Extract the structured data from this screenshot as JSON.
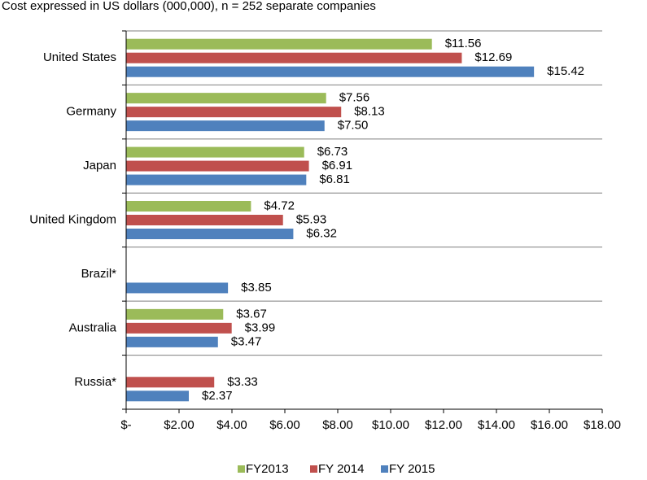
{
  "chart_data": {
    "type": "bar",
    "orientation": "horizontal",
    "title": "",
    "subtitle": "Cost expressed in US dollars (000,000), n = 252 separate companies",
    "xlabel": "",
    "ylabel": "",
    "xlim": [
      0,
      18
    ],
    "x_ticks": [
      0,
      2,
      4,
      6,
      8,
      10,
      12,
      14,
      16,
      18
    ],
    "x_tick_labels": [
      "$-",
      "$2.00",
      "$4.00",
      "$6.00",
      "$8.00",
      "$10.00",
      "$12.00",
      "$14.00",
      "$16.00",
      "$18.00"
    ],
    "categories": [
      "United States",
      "Germany",
      "Japan",
      "United Kingdom",
      "Brazil*",
      "Australia",
      "Russia*"
    ],
    "series": [
      {
        "name": "FY2013",
        "color": "#9BBB59",
        "values": [
          11.56,
          7.56,
          6.73,
          4.72,
          null,
          3.67,
          null
        ],
        "labels": [
          "$11.56",
          "$7.56",
          "$6.73",
          "$4.72",
          null,
          "$3.67",
          null
        ]
      },
      {
        "name": "FY 2014",
        "color": "#C0504D",
        "values": [
          12.69,
          8.13,
          6.91,
          5.93,
          null,
          3.99,
          3.33
        ],
        "labels": [
          "$12.69",
          "$8.13",
          "$6.91",
          "$5.93",
          null,
          "$3.99",
          "$3.33"
        ]
      },
      {
        "name": "FY 2015",
        "color": "#4F81BD",
        "values": [
          15.42,
          7.5,
          6.81,
          6.32,
          3.85,
          3.47,
          2.37
        ],
        "labels": [
          "$15.42",
          "$7.50",
          "$6.81",
          "$6.32",
          "$3.85",
          "$3.47",
          "$2.37"
        ]
      }
    ],
    "grid": "horizontal category separators",
    "legend_position": "bottom"
  }
}
